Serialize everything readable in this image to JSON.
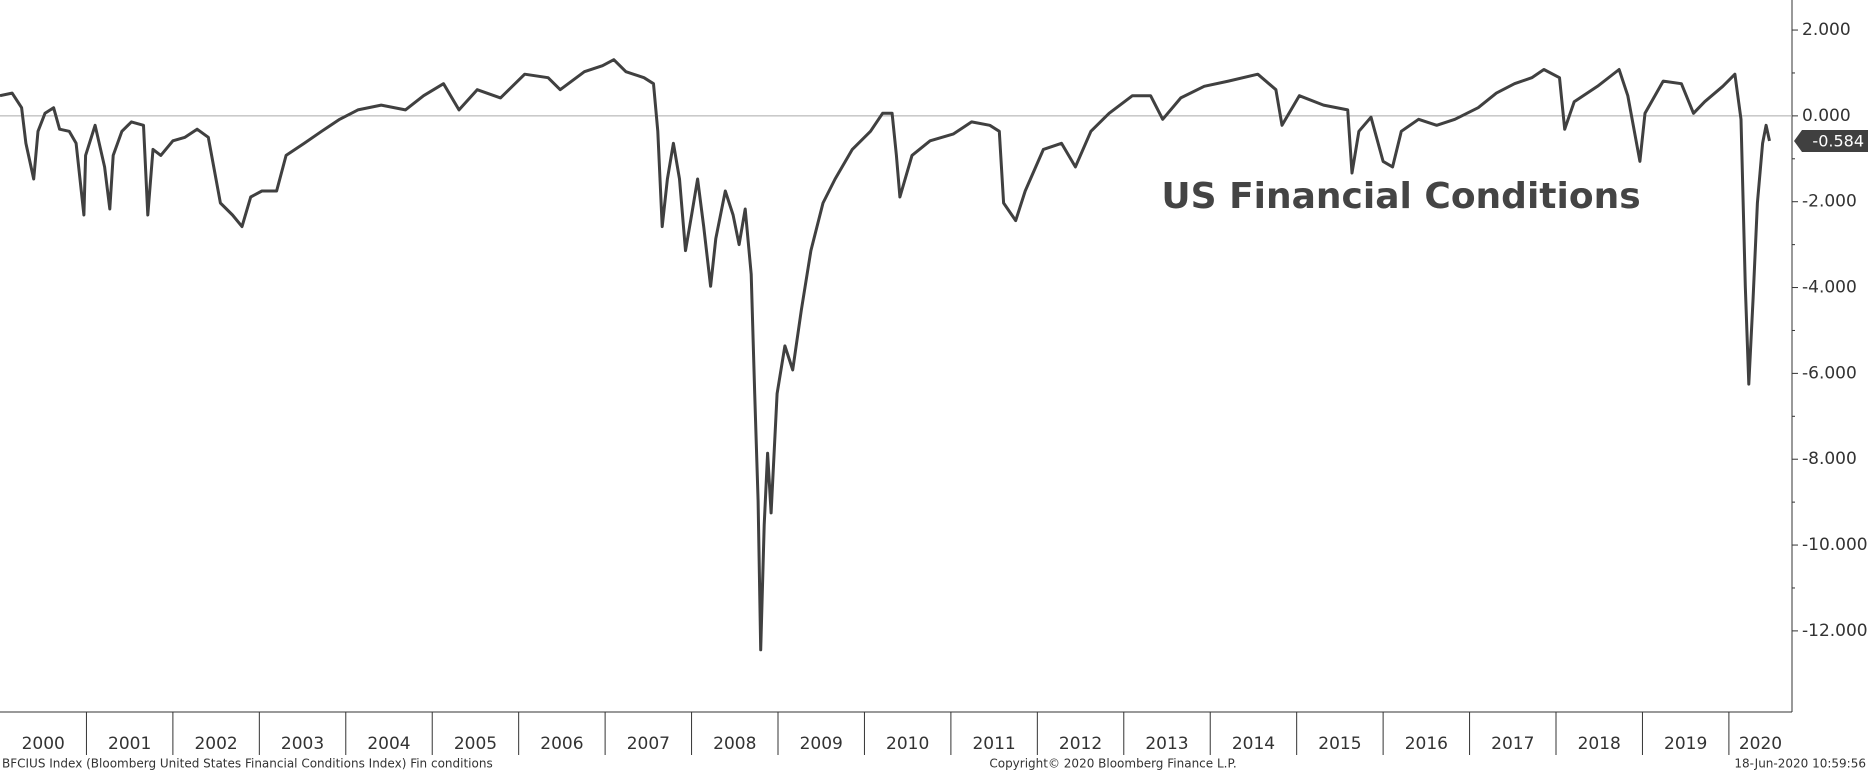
{
  "chart_data": {
    "type": "line",
    "title": "US Financial Conditions",
    "source": "BFCIUS Index (Bloomberg United States Financial Conditions Index) Fin conditions",
    "copyright": "Copyright© 2020 Bloomberg Finance L.P.",
    "timestamp": "18-Jun-2020 10:59:56",
    "xlim": [
      2000,
      2020.73
    ],
    "xticks": [
      2000,
      2001,
      2002,
      2003,
      2004,
      2005,
      2006,
      2007,
      2008,
      2009,
      2010,
      2011,
      2012,
      2013,
      2014,
      2015,
      2016,
      2017,
      2018,
      2019,
      2020
    ],
    "ylim": [
      -13.89,
      2.7
    ],
    "yticks": [
      {
        "value": 2,
        "label": "2.000"
      },
      {
        "value": 0,
        "label": "0.000"
      },
      {
        "value": -2,
        "label": "-2.000"
      },
      {
        "value": -4,
        "label": "-4.000"
      },
      {
        "value": -6,
        "label": "-6.000"
      },
      {
        "value": -8,
        "label": "-8.000"
      },
      {
        "value": -10,
        "label": "-10.000"
      },
      {
        "value": -12,
        "label": "-12.000"
      }
    ],
    "reference_line": 0,
    "series": [
      {
        "name": "BFCIUS Index",
        "color": "#404040",
        "x": [
          2000.0,
          2000.14,
          2000.25,
          2000.3,
          2000.39,
          2000.44,
          2000.52,
          2000.62,
          2000.69,
          2000.8,
          2000.88,
          2000.97,
          2000.99,
          2001.1,
          2001.21,
          2001.27,
          2001.31,
          2001.41,
          2001.52,
          2001.66,
          2001.71,
          2001.77,
          2001.86,
          2002.0,
          2002.14,
          2002.28,
          2002.41,
          2002.55,
          2002.69,
          2002.8,
          2002.9,
          2003.03,
          2003.2,
          2003.31,
          2003.52,
          2003.72,
          2003.93,
          2004.14,
          2004.41,
          2004.69,
          2004.9,
          2005.13,
          2005.31,
          2005.52,
          2005.79,
          2006.07,
          2006.34,
          2006.48,
          2006.76,
          2006.97,
          2007.1,
          2007.24,
          2007.45,
          2007.56,
          2007.61,
          2007.66,
          2007.72,
          2007.79,
          2007.86,
          2007.93,
          2008.0,
          2008.07,
          2008.14,
          2008.22,
          2008.28,
          2008.39,
          2008.48,
          2008.55,
          2008.62,
          2008.69,
          2008.73,
          2008.77,
          2008.8,
          2008.84,
          2008.88,
          2008.92,
          2008.99,
          2009.08,
          2009.17,
          2009.27,
          2009.38,
          2009.52,
          2009.66,
          2009.86,
          2010.07,
          2010.21,
          2010.32,
          2010.37,
          2010.41,
          2010.55,
          2010.76,
          2011.03,
          2011.24,
          2011.45,
          2011.56,
          2011.61,
          2011.75,
          2011.86,
          2012.07,
          2012.28,
          2012.44,
          2012.62,
          2012.83,
          2013.1,
          2013.31,
          2013.45,
          2013.66,
          2013.93,
          2014.21,
          2014.55,
          2014.76,
          2014.83,
          2015.03,
          2015.31,
          2015.59,
          2015.64,
          2015.72,
          2015.86,
          2016.0,
          2016.11,
          2016.21,
          2016.41,
          2016.62,
          2016.83,
          2017.1,
          2017.31,
          2017.52,
          2017.72,
          2017.86,
          2018.04,
          2018.1,
          2018.21,
          2018.48,
          2018.73,
          2018.83,
          2018.97,
          2019.03,
          2019.24,
          2019.45,
          2019.59,
          2019.72,
          2019.93,
          2020.07,
          2020.14,
          2020.19,
          2020.23,
          2020.28,
          2020.33,
          2020.39,
          2020.43,
          2020.47
        ],
        "values": [
          0.47,
          0.53,
          0.19,
          -0.64,
          -1.47,
          -0.36,
          0.06,
          0.19,
          -0.31,
          -0.36,
          -0.64,
          -2.31,
          -0.92,
          -0.22,
          -1.19,
          -2.17,
          -0.92,
          -0.36,
          -0.14,
          -0.22,
          -2.31,
          -0.78,
          -0.92,
          -0.58,
          -0.5,
          -0.31,
          -0.5,
          -2.03,
          -2.31,
          -2.58,
          -1.89,
          -1.75,
          -1.75,
          -0.92,
          -0.64,
          -0.36,
          -0.08,
          0.14,
          0.25,
          0.14,
          0.47,
          0.75,
          0.14,
          0.61,
          0.42,
          0.97,
          0.89,
          0.61,
          1.03,
          1.17,
          1.31,
          1.03,
          0.89,
          0.75,
          -0.36,
          -2.58,
          -1.47,
          -0.64,
          -1.47,
          -3.14,
          -2.31,
          -1.47,
          -2.58,
          -3.97,
          -2.86,
          -1.75,
          -2.31,
          -3.0,
          -2.17,
          -3.69,
          -6.47,
          -8.97,
          -12.44,
          -9.53,
          -7.86,
          -9.25,
          -6.47,
          -5.36,
          -5.92,
          -4.53,
          -3.14,
          -2.03,
          -1.47,
          -0.78,
          -0.36,
          0.06,
          0.06,
          -0.92,
          -1.89,
          -0.92,
          -0.58,
          -0.42,
          -0.14,
          -0.22,
          -0.36,
          -2.03,
          -2.44,
          -1.75,
          -0.78,
          -0.64,
          -1.19,
          -0.36,
          0.06,
          0.47,
          0.47,
          -0.08,
          0.42,
          0.69,
          0.81,
          0.97,
          0.61,
          -0.22,
          0.47,
          0.25,
          0.14,
          -1.33,
          -0.36,
          -0.03,
          -1.06,
          -1.19,
          -0.36,
          -0.08,
          -0.22,
          -0.08,
          0.19,
          0.53,
          0.75,
          0.89,
          1.08,
          0.89,
          -0.31,
          0.33,
          0.69,
          1.08,
          0.47,
          -1.06,
          0.06,
          0.81,
          0.75,
          0.06,
          0.33,
          0.69,
          0.97,
          -0.08,
          -3.97,
          -6.25,
          -4.25,
          -2.03,
          -0.64,
          -0.22,
          -0.584
        ]
      }
    ]
  }
}
